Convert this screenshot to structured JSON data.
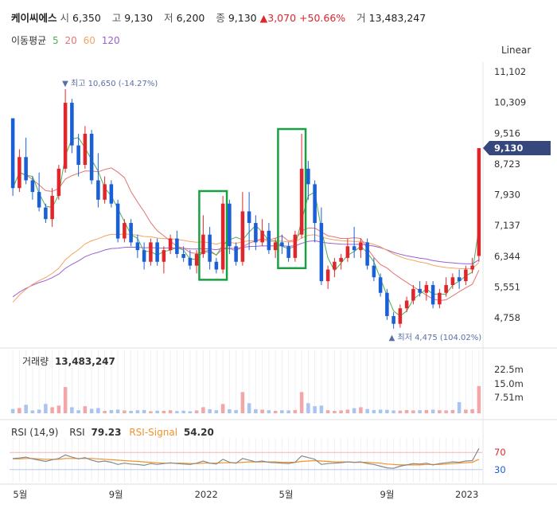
{
  "header": {
    "name": "케이씨에스",
    "open_label": "시",
    "open": "6,350",
    "high_label": "고",
    "high": "9,130",
    "low_label": "저",
    "low": "6,200",
    "close_label": "종",
    "close": "9,130",
    "change": "▲3,070",
    "change_pct": "+50.66%",
    "volume_label": "거",
    "volume": "13,483,247"
  },
  "ma_legend": {
    "label": "이동평균",
    "p5": "5",
    "p20": "20",
    "p60": "60",
    "p120": "120"
  },
  "scale_button": "Linear",
  "volume_panel": {
    "label": "거래량",
    "value": "13,483,247"
  },
  "rsi_panel": {
    "label": "RSI (14,9)",
    "rsi_name": "RSI",
    "rsi_value": "79.23",
    "signal_name": "RSI-Signal",
    "signal_value": "54.20"
  },
  "annotations": {
    "max": "▼ 최고 10,650 (-14.27%)",
    "min": "▲ 최저 4,475 (104.02%)",
    "last_price": "9,130"
  },
  "colors": {
    "up": "#e0262b",
    "down": "#1a5fd6",
    "ma5": "#4caf50",
    "ma20": "#e57373",
    "ma60": "#f4a460",
    "ma120": "#9c5fd6",
    "highlight": "#1aa043",
    "price_tag": "#35477d"
  },
  "chart_data": {
    "type": "candlestick",
    "price_axis": {
      "ticks": [
        "11,102",
        "10,309",
        "9,516",
        "8,723",
        "7,930",
        "7,137",
        "6,344",
        "5,551",
        "4,758"
      ],
      "range": [
        4758,
        11102
      ]
    },
    "volume_axis": {
      "ticks": [
        "22.5m",
        "15.0m",
        "7.51m"
      ]
    },
    "rsi_axis": {
      "ticks": [
        "70",
        "30"
      ]
    },
    "x_ticks": [
      "5월",
      "9월",
      "2022",
      "5월",
      "9월",
      "2023"
    ],
    "candles": [
      [
        9900,
        9900,
        7900,
        8100
      ],
      [
        8100,
        9100,
        8000,
        8900
      ],
      [
        8900,
        9400,
        8200,
        8300
      ],
      [
        8300,
        8400,
        7800,
        8000
      ],
      [
        8000,
        8500,
        7500,
        7600
      ],
      [
        7600,
        7700,
        7200,
        7300
      ],
      [
        7300,
        8100,
        7100,
        7900
      ],
      [
        7900,
        8700,
        7800,
        8600
      ],
      [
        8600,
        10650,
        8500,
        10300
      ],
      [
        10300,
        10400,
        9000,
        9200
      ],
      [
        9200,
        9500,
        8400,
        8700
      ],
      [
        8700,
        9700,
        8600,
        9500
      ],
      [
        9500,
        9600,
        8200,
        8300
      ],
      [
        8300,
        9000,
        7600,
        7800
      ],
      [
        7800,
        8400,
        7700,
        8200
      ],
      [
        8200,
        8300,
        7600,
        7700
      ],
      [
        7700,
        7800,
        6700,
        6800
      ],
      [
        6800,
        7300,
        6700,
        7200
      ],
      [
        7200,
        7300,
        6600,
        6700
      ],
      [
        6700,
        6900,
        6300,
        6500
      ],
      [
        6500,
        6700,
        6000,
        6200
      ],
      [
        6200,
        6800,
        6100,
        6700
      ],
      [
        6700,
        6800,
        6100,
        6200
      ],
      [
        6200,
        6600,
        5900,
        6500
      ],
      [
        6500,
        6900,
        6400,
        6800
      ],
      [
        6800,
        7000,
        6300,
        6400
      ],
      [
        6400,
        6600,
        6200,
        6300
      ],
      [
        6300,
        6500,
        6000,
        6100
      ],
      [
        6100,
        6500,
        5900,
        6400
      ],
      [
        6400,
        7400,
        6300,
        6900
      ],
      [
        6900,
        7100,
        6000,
        6200
      ],
      [
        6200,
        6300,
        5900,
        6000
      ],
      [
        6000,
        7900,
        5900,
        7700
      ],
      [
        7700,
        7800,
        6400,
        6600
      ],
      [
        6600,
        6700,
        6100,
        6200
      ],
      [
        6200,
        8000,
        6100,
        7500
      ],
      [
        7500,
        8000,
        6500,
        7200
      ],
      [
        7200,
        7400,
        6500,
        6700
      ],
      [
        6700,
        7300,
        6600,
        7000
      ],
      [
        7000,
        7200,
        6400,
        6500
      ],
      [
        6500,
        6800,
        6300,
        6700
      ],
      [
        6700,
        6900,
        6400,
        6600
      ],
      [
        6600,
        6700,
        6200,
        6300
      ],
      [
        6300,
        7000,
        6200,
        6900
      ],
      [
        6900,
        9500,
        6800,
        8600
      ],
      [
        8600,
        8800,
        7800,
        8200
      ],
      [
        8200,
        8300,
        6700,
        7200
      ],
      [
        7200,
        7600,
        5600,
        5700
      ],
      [
        5700,
        6100,
        5500,
        6000
      ],
      [
        6000,
        6300,
        5800,
        6200
      ],
      [
        6200,
        6400,
        6000,
        6300
      ],
      [
        6300,
        6800,
        6200,
        6600
      ],
      [
        6600,
        7100,
        6300,
        6500
      ],
      [
        6500,
        6800,
        6300,
        6700
      ],
      [
        6700,
        6800,
        6000,
        6100
      ],
      [
        6100,
        6300,
        5700,
        5800
      ],
      [
        5800,
        5900,
        5300,
        5400
      ],
      [
        5400,
        5500,
        4700,
        4800
      ],
      [
        4800,
        4900,
        4475,
        4600
      ],
      [
        4600,
        5100,
        4500,
        5000
      ],
      [
        5000,
        5300,
        4900,
        5200
      ],
      [
        5200,
        5600,
        5100,
        5500
      ],
      [
        5500,
        5700,
        5300,
        5400
      ],
      [
        5400,
        5700,
        5200,
        5600
      ],
      [
        5600,
        5700,
        5000,
        5100
      ],
      [
        5100,
        5500,
        5000,
        5400
      ],
      [
        5400,
        5800,
        5300,
        5600
      ],
      [
        5600,
        5900,
        5500,
        5800
      ],
      [
        5800,
        6000,
        5500,
        5700
      ],
      [
        5700,
        6100,
        5600,
        6000
      ],
      [
        6000,
        6300,
        5900,
        6100
      ],
      [
        6350,
        9130,
        6200,
        9130
      ]
    ],
    "volumes": [
      2.1,
      2.6,
      4.2,
      1.4,
      1.8,
      4.6,
      3.0,
      3.8,
      13.0,
      3.0,
      1.5,
      3.5,
      2.2,
      2.6,
      1.2,
      1.6,
      1.8,
      1.4,
      1.2,
      1.5,
      1.6,
      1.0,
      1.3,
      1.2,
      1.5,
      1.1,
      1.3,
      1.0,
      1.4,
      3.0,
      2.0,
      1.5,
      4.6,
      2.0,
      1.6,
      10.5,
      5.0,
      2.0,
      1.8,
      1.5,
      1.2,
      1.5,
      1.4,
      1.6,
      10.5,
      5.0,
      3.5,
      3.8,
      1.5,
      1.2,
      1.4,
      1.8,
      2.5,
      3.0,
      2.1,
      1.6,
      1.8,
      1.7,
      1.4,
      1.3,
      1.6,
      1.4,
      1.5,
      1.6,
      1.8,
      1.5,
      1.4,
      1.6,
      5.5,
      1.8,
      2.0,
      13.5
    ],
    "rsi": [
      56,
      57,
      59,
      55,
      52,
      49,
      53,
      56,
      64,
      59,
      55,
      58,
      52,
      48,
      50,
      47,
      42,
      45,
      43,
      42,
      40,
      44,
      42,
      44,
      46,
      44,
      43,
      42,
      45,
      50,
      45,
      43,
      54,
      47,
      45,
      56,
      52,
      48,
      50,
      47,
      46,
      45,
      44,
      47,
      62,
      58,
      54,
      42,
      44,
      45,
      46,
      48,
      47,
      48,
      44,
      42,
      38,
      34,
      33,
      38,
      41,
      44,
      43,
      45,
      41,
      44,
      46,
      48,
      47,
      50,
      51,
      79
    ],
    "rsi_signal": [
      55,
      55,
      56,
      56,
      55,
      54,
      54,
      54,
      56,
      56,
      56,
      56,
      56,
      55,
      54,
      53,
      52,
      51,
      50,
      49,
      48,
      47,
      46,
      45,
      45,
      45,
      45,
      44,
      44,
      45,
      45,
      45,
      46,
      46,
      46,
      47,
      48,
      48,
      48,
      48,
      48,
      47,
      47,
      47,
      49,
      50,
      51,
      50,
      49,
      48,
      48,
      48,
      47,
      47,
      47,
      46,
      45,
      43,
      42,
      41,
      41,
      41,
      41,
      42,
      42,
      42,
      43,
      44,
      45,
      46,
      47,
      54
    ]
  }
}
